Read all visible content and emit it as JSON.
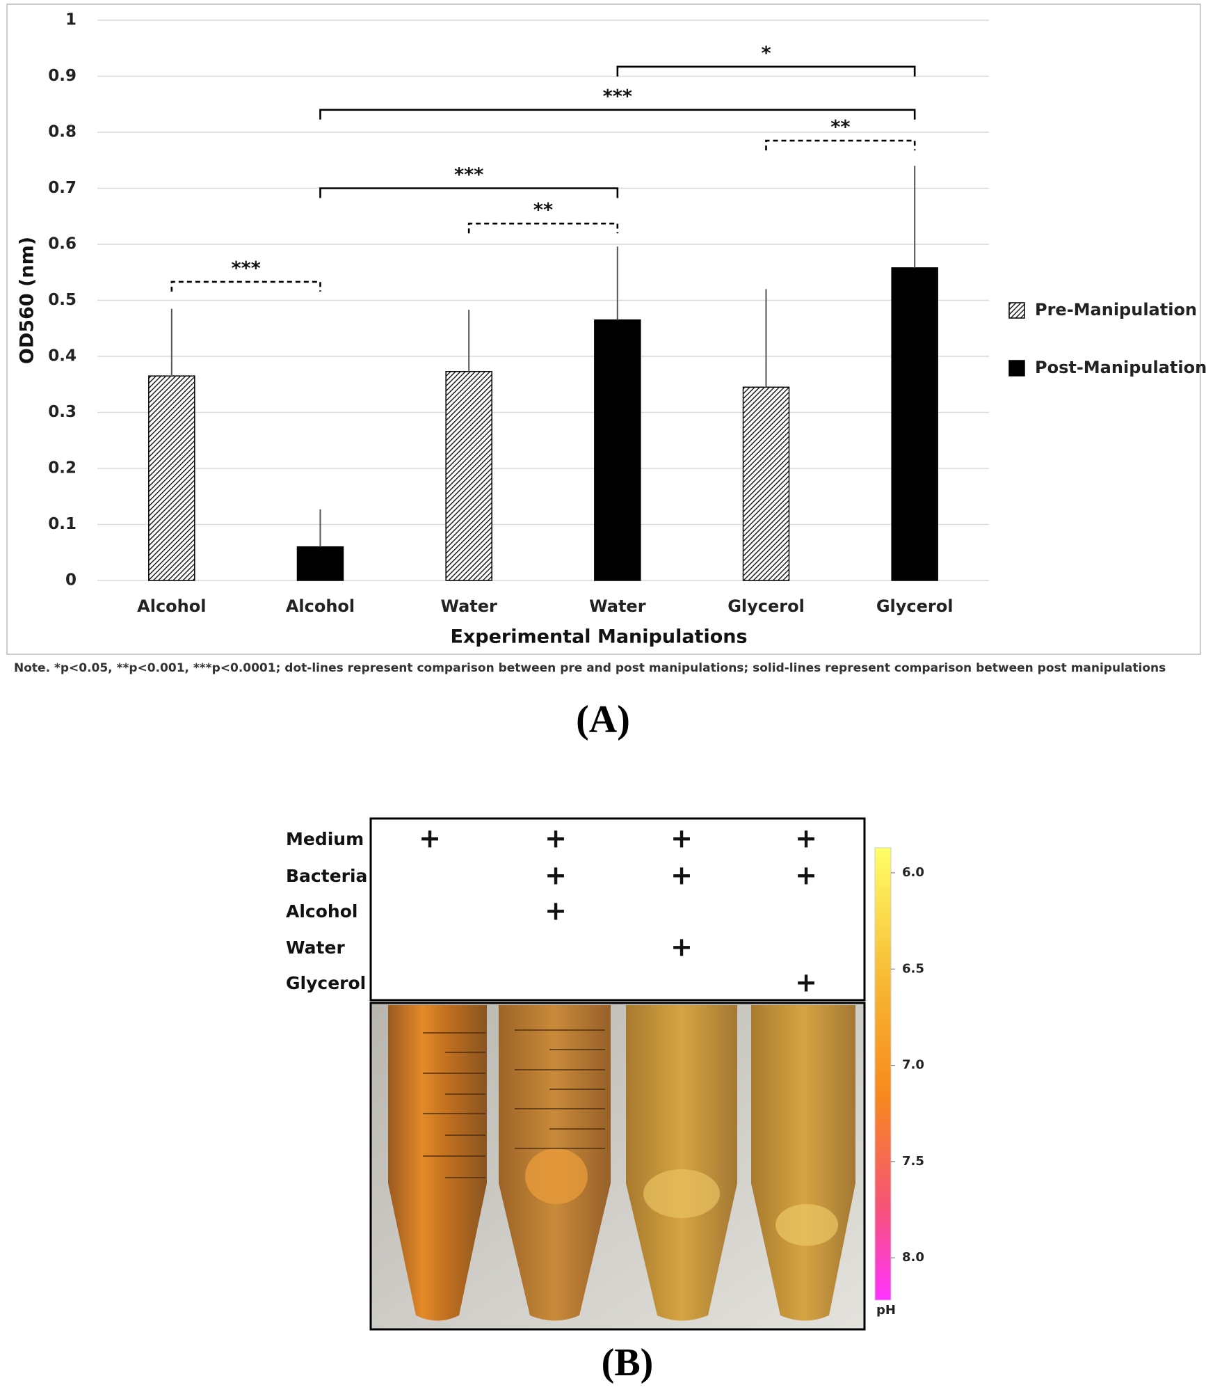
{
  "chart_data": {
    "type": "bar",
    "categories": [
      "Alcohol",
      "Alcohol",
      "Water",
      "Water",
      "Glycerol",
      "Glycerol"
    ],
    "series": [
      {
        "name": "Pre-Manipulation",
        "color": "#000000",
        "fill": "hatch",
        "values": [
          0.365,
          null,
          0.373,
          null,
          0.345,
          null
        ],
        "errors": [
          0.12,
          null,
          0.11,
          null,
          0.175,
          null
        ]
      },
      {
        "name": "Post-Manipulation",
        "color": "#000000",
        "fill": "solid",
        "values": [
          null,
          0.06,
          null,
          0.465,
          null,
          0.558
        ],
        "errors": [
          null,
          0.067,
          null,
          0.131,
          null,
          0.182
        ]
      }
    ],
    "ylim": [
      0,
      1
    ],
    "yticks": [
      0,
      0.1,
      0.2,
      0.3,
      0.4,
      0.5,
      0.6,
      0.7,
      0.8,
      0.9,
      1
    ],
    "grid": true,
    "ylabel": "OD560 (nm)",
    "xlabel": "Experimental Manipulations",
    "legend": "right",
    "annotations": [
      {
        "text": "***",
        "from": 0,
        "to": 1,
        "y": 0.533,
        "style": "dashed"
      },
      {
        "text": "**",
        "from": 2,
        "to": 3,
        "y": 0.637,
        "style": "dashed"
      },
      {
        "text": "***",
        "from": 1,
        "to": 3,
        "y": 0.7,
        "style": "solid"
      },
      {
        "text": "**",
        "from": 4,
        "to": 5,
        "y": 0.785,
        "style": "dashed"
      },
      {
        "text": "***",
        "from": 1,
        "to": 5,
        "y": 0.84,
        "style": "solid"
      },
      {
        "text": "*",
        "from": 3,
        "to": 5,
        "y": 0.917,
        "style": "solid"
      }
    ],
    "note": "Note. *p<0.05, **p<0.001, ***p<0.0001; dot-lines represent comparison between pre and post manipulations; solid-lines represent comparison between post manipulations",
    "panel_label": "(A)"
  },
  "panel_b": {
    "rows": [
      {
        "label": "Medium",
        "cells": [
          "+",
          "+",
          "+",
          "+"
        ]
      },
      {
        "label": "Bacteria",
        "cells": [
          null,
          "+",
          "+",
          "+"
        ]
      },
      {
        "label": "Alcohol",
        "cells": [
          null,
          "+",
          null,
          null
        ]
      },
      {
        "label": "Water",
        "cells": [
          null,
          null,
          "+",
          null
        ]
      },
      {
        "label": "Glycerol",
        "cells": [
          null,
          null,
          null,
          "+"
        ]
      }
    ],
    "colorbar": {
      "label": "pH",
      "lim": [
        5.87,
        8.22
      ],
      "ticks": [
        {
          "value": 6,
          "label": "6.0"
        },
        {
          "value": 6.5,
          "label": "6.5"
        },
        {
          "value": 7,
          "label": "7.0"
        },
        {
          "value": 7.5,
          "label": "7.5"
        },
        {
          "value": 8,
          "label": "8.0"
        }
      ]
    },
    "panel_label": "(B)"
  }
}
